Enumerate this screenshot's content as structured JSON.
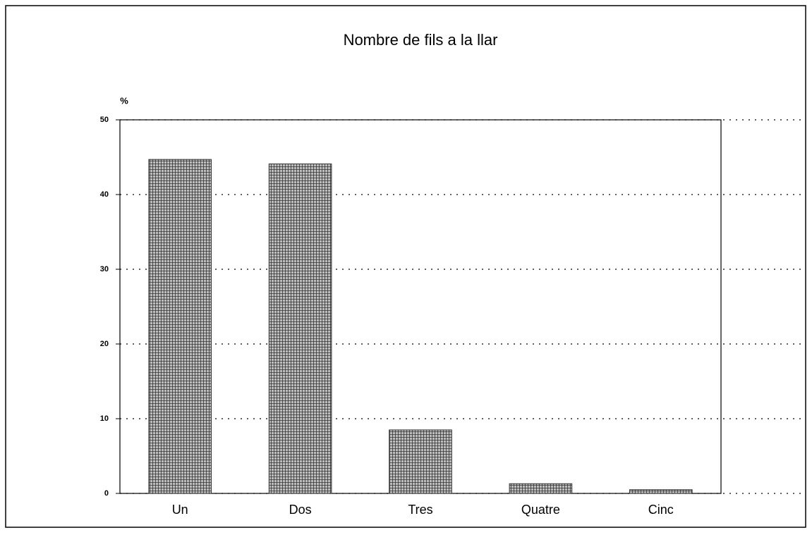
{
  "chart_data": {
    "type": "bar",
    "title": "Nombre de fils a la llar",
    "y_label": "%",
    "categories": [
      "Un",
      "Dos",
      "Tres",
      "Quatre",
      "Cinc"
    ],
    "values": [
      44.7,
      44.1,
      8.5,
      1.3,
      0.5
    ],
    "color": "#333333",
    "ylim": [
      0,
      50
    ],
    "yticks": [
      0,
      10,
      20,
      30,
      40,
      50
    ],
    "grid": true
  }
}
